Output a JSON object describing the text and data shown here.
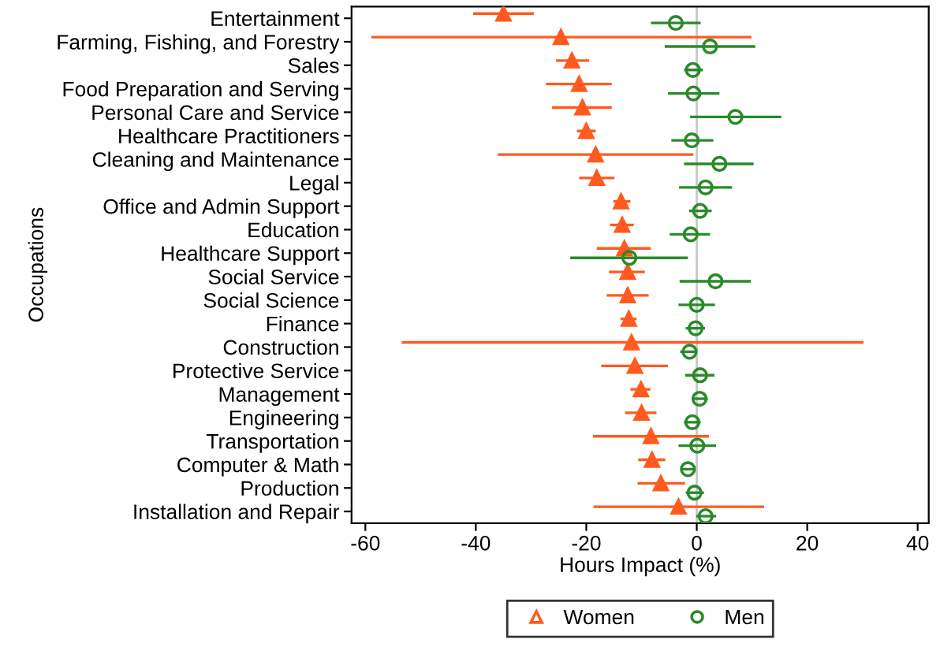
{
  "chart_data": {
    "type": "scatter",
    "orientation": "horizontal",
    "xlabel": "Hours Impact (%)",
    "ylabel": "Occupations",
    "categories": [
      "Entertainment",
      "Farming, Fishing, and Forestry",
      "Sales",
      "Food Preparation and Serving",
      "Personal Care and Service",
      "Healthcare Practitioners",
      "Cleaning and Maintenance",
      "Legal",
      "Office and Admin Support",
      "Education",
      "Healthcare Support",
      "Social Service",
      "Social Science",
      "Finance",
      "Construction",
      "Protective Service",
      "Management",
      "Engineering",
      "Transportation",
      "Computer & Math",
      "Production",
      "Installation and Repair"
    ],
    "series": [
      {
        "name": "Women",
        "color": "#ff5a1f",
        "marker": "triangle",
        "values": [
          -35.0,
          -24.6,
          -22.6,
          -21.3,
          -20.7,
          -20.0,
          -18.3,
          -18.1,
          -13.7,
          -13.5,
          -13.1,
          -12.5,
          -12.5,
          -12.3,
          -11.8,
          -11.2,
          -10.1,
          -10.0,
          -8.3,
          -8.1,
          -6.5,
          -3.3
        ],
        "errors": [
          [
            -40.5,
            -29.5
          ],
          [
            -58.9,
            9.9
          ],
          [
            -25.5,
            -19.5
          ],
          [
            -27.3,
            -15.4
          ],
          [
            -26.2,
            -15.4
          ],
          [
            -21.7,
            -18.3
          ],
          [
            -36.0,
            -0.6
          ],
          [
            -21.3,
            -14.9
          ],
          [
            -15.1,
            -12.0
          ],
          [
            -15.7,
            -11.4
          ],
          [
            -18.1,
            -8.3
          ],
          [
            -15.9,
            -9.4
          ],
          [
            -16.3,
            -8.7
          ],
          [
            -13.8,
            -10.9
          ],
          [
            -53.4,
            30.2
          ],
          [
            -17.3,
            -5.2
          ],
          [
            -12.0,
            -8.4
          ],
          [
            -13.0,
            -7.3
          ],
          [
            -18.8,
            2.2
          ],
          [
            -10.6,
            -5.7
          ],
          [
            -10.7,
            -2.1
          ],
          [
            -18.7,
            12.2
          ]
        ]
      },
      {
        "name": "Men",
        "color": "#2a8a2a",
        "marker": "circle",
        "values": [
          -3.8,
          2.4,
          -0.7,
          -0.6,
          7.0,
          -0.9,
          4.1,
          1.6,
          0.6,
          -1.1,
          -12.2,
          3.4,
          0.0,
          -0.2,
          -1.3,
          0.6,
          0.5,
          -0.8,
          0.1,
          -1.6,
          -0.4,
          1.6
        ],
        "errors": [
          [
            -8.3,
            0.7
          ],
          [
            -5.8,
            10.6
          ],
          [
            -2.3,
            1.1
          ],
          [
            -5.2,
            4.1
          ],
          [
            -1.2,
            15.3
          ],
          [
            -4.6,
            3.0
          ],
          [
            -2.3,
            10.3
          ],
          [
            -3.2,
            6.4
          ],
          [
            -1.4,
            2.7
          ],
          [
            -4.9,
            2.4
          ],
          [
            -22.9,
            -1.6
          ],
          [
            -3.1,
            9.8
          ],
          [
            -3.3,
            3.3
          ],
          [
            -2.0,
            1.5
          ],
          [
            -3.0,
            0.0
          ],
          [
            -2.1,
            3.2
          ],
          [
            -0.9,
            2.0
          ],
          [
            -2.3,
            0.7
          ],
          [
            -3.3,
            3.5
          ],
          [
            -2.9,
            -0.4
          ],
          [
            -2.0,
            1.3
          ],
          [
            -0.1,
            3.5
          ]
        ]
      }
    ],
    "xlim": [
      -62.5,
      42
    ],
    "xticks": [
      {
        "value": -60,
        "label": "-60"
      },
      {
        "value": -40,
        "label": "-40"
      },
      {
        "value": -20,
        "label": "-20"
      },
      0,
      20,
      40
    ],
    "ref_lines": [
      {
        "axis": "x",
        "value": 0,
        "label": null,
        "color": "#c8c8c8"
      }
    ],
    "legend": "bottom"
  }
}
